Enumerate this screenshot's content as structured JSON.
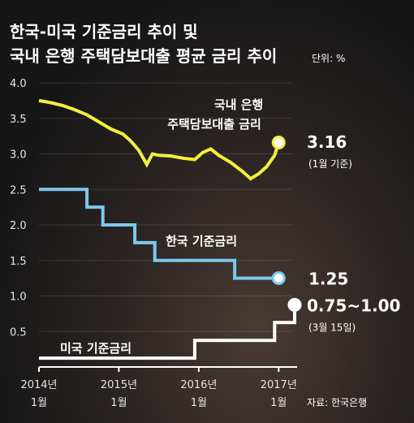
{
  "chart_data": {
    "type": "line",
    "title_line1": "한국-미국 기준금리 추이 및",
    "title_line2": "국내 은행 주택담보대출 평균 금리 추이",
    "unit": "단위: %",
    "y_ticks": [
      "4.0",
      "3.5",
      "3.0",
      "2.5",
      "2.0",
      "1.5",
      "1.0",
      "0.5"
    ],
    "ylim": [
      0,
      4.0
    ],
    "x_ticks": [
      {
        "year": "2014년",
        "month": "1월",
        "x": 2014.0
      },
      {
        "year": "2015년",
        "month": "1월",
        "x": 2015.0
      },
      {
        "year": "2016년",
        "month": "1월",
        "x": 2016.0
      },
      {
        "year": "2017년",
        "month": "1월",
        "x": 2017.0
      }
    ],
    "xlim": [
      2014.0,
      2017.17
    ],
    "source": "자료: 한국은행",
    "colors": {
      "mortgage": "#f4ee3e",
      "korea": "#7cc8ec",
      "us": "#ffffff"
    },
    "series": [
      {
        "key": "mortgage",
        "name": "국내 은행 주택담보대출 금리",
        "label_line1": "국내 은행",
        "label_line2": "주택담보대출 금리",
        "end_value": "3.16",
        "end_note": "(1월 기준)",
        "values": [
          [
            2014.0,
            3.75
          ],
          [
            2014.15,
            3.72
          ],
          [
            2014.3,
            3.68
          ],
          [
            2014.45,
            3.62
          ],
          [
            2014.6,
            3.55
          ],
          [
            2014.75,
            3.45
          ],
          [
            2014.9,
            3.35
          ],
          [
            2015.05,
            3.28
          ],
          [
            2015.15,
            3.18
          ],
          [
            2015.25,
            3.05
          ],
          [
            2015.35,
            2.85
          ],
          [
            2015.42,
            3.0
          ],
          [
            2015.5,
            2.98
          ],
          [
            2015.65,
            2.97
          ],
          [
            2015.8,
            2.94
          ],
          [
            2015.95,
            2.92
          ],
          [
            2016.05,
            3.02
          ],
          [
            2016.15,
            3.07
          ],
          [
            2016.25,
            2.98
          ],
          [
            2016.4,
            2.88
          ],
          [
            2016.55,
            2.75
          ],
          [
            2016.65,
            2.65
          ],
          [
            2016.75,
            2.72
          ],
          [
            2016.85,
            2.82
          ],
          [
            2016.95,
            2.98
          ],
          [
            2017.0,
            3.16
          ]
        ]
      },
      {
        "key": "korea",
        "name": "한국 기준금리",
        "label": "한국 기준금리",
        "end_value": "1.25",
        "values": [
          [
            2014.0,
            2.5
          ],
          [
            2014.6,
            2.5
          ],
          [
            2014.6,
            2.25
          ],
          [
            2014.8,
            2.25
          ],
          [
            2014.8,
            2.0
          ],
          [
            2015.2,
            2.0
          ],
          [
            2015.2,
            1.75
          ],
          [
            2015.45,
            1.75
          ],
          [
            2015.45,
            1.5
          ],
          [
            2016.45,
            1.5
          ],
          [
            2016.45,
            1.25
          ],
          [
            2017.0,
            1.25
          ]
        ]
      },
      {
        "key": "us",
        "name": "미국 기준금리",
        "label": "미국 기준금리",
        "end_value": "0.75~1.00",
        "end_note": "(3월 15일)",
        "values": [
          [
            2014.0,
            0.125
          ],
          [
            2015.95,
            0.125
          ],
          [
            2015.95,
            0.375
          ],
          [
            2016.95,
            0.375
          ],
          [
            2016.95,
            0.625
          ],
          [
            2017.2,
            0.625
          ],
          [
            2017.2,
            0.875
          ]
        ]
      }
    ]
  }
}
